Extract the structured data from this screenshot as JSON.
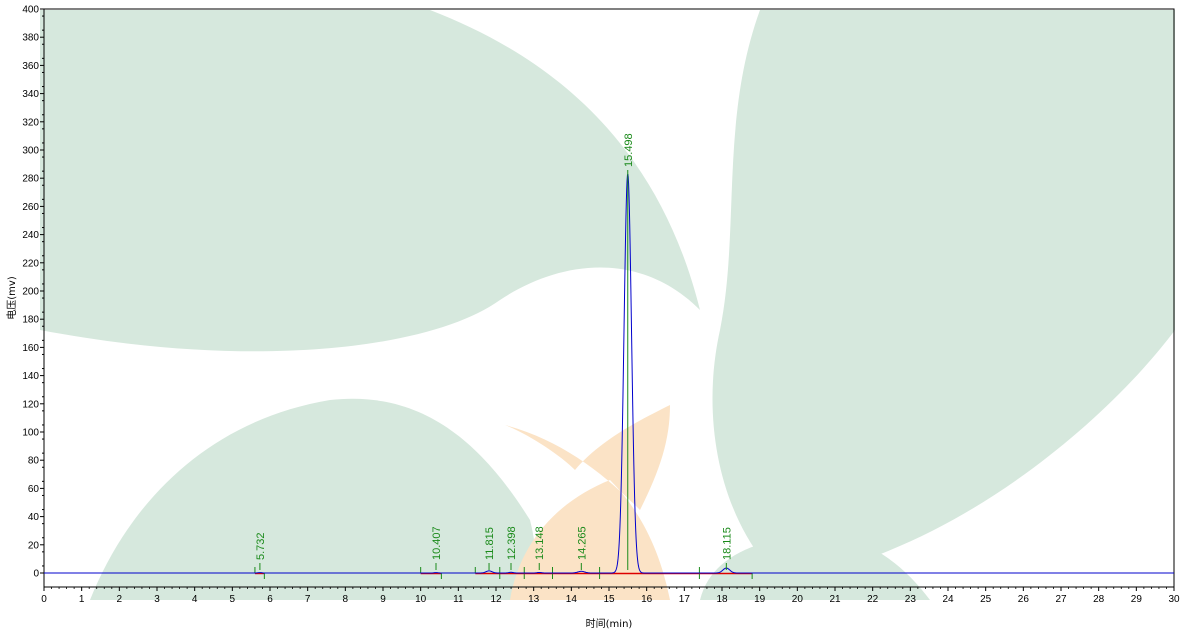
{
  "chart_data": {
    "type": "line",
    "title": "",
    "xlabel": "时间(min)",
    "ylabel": "电压(mv)",
    "xlim": [
      0,
      30
    ],
    "ylim": [
      -10,
      400
    ],
    "x_ticks": [
      0,
      1,
      2,
      3,
      4,
      5,
      6,
      7,
      8,
      9,
      10,
      11,
      12,
      13,
      14,
      15,
      16,
      17,
      18,
      19,
      20,
      21,
      22,
      23,
      24,
      25,
      26,
      27,
      28,
      29,
      30
    ],
    "y_ticks": [
      0,
      20,
      40,
      60,
      80,
      100,
      120,
      140,
      160,
      180,
      200,
      220,
      240,
      260,
      280,
      300,
      320,
      340,
      360,
      380,
      400
    ],
    "grid": false,
    "series": [
      {
        "color": "#0000cc",
        "peaks": [
          {
            "rt": 5.732,
            "height": 0.3,
            "width": 0.05
          },
          {
            "rt": 10.407,
            "height": 0.3,
            "width": 0.05
          },
          {
            "rt": 11.815,
            "height": 1.5,
            "width": 0.08
          },
          {
            "rt": 12.398,
            "height": 0.5,
            "width": 0.06
          },
          {
            "rt": 13.148,
            "height": 0.4,
            "width": 0.06
          },
          {
            "rt": 14.265,
            "height": 1.2,
            "width": 0.09
          },
          {
            "rt": 15.498,
            "height": 283,
            "width": 0.1
          },
          {
            "rt": 18.115,
            "height": 3.5,
            "width": 0.09
          }
        ]
      }
    ],
    "peak_labels": [
      "5.732",
      "10.407",
      "11.815",
      "12.398",
      "13.148",
      "14.265",
      "15.498",
      "18.115"
    ],
    "baseline_segments": [
      [
        5.6,
        5.85
      ],
      [
        10.0,
        10.55
      ],
      [
        11.45,
        12.1
      ],
      [
        12.1,
        12.75
      ],
      [
        12.75,
        13.5
      ],
      [
        13.5,
        14.75
      ],
      [
        14.75,
        17.4
      ],
      [
        17.4,
        18.8
      ]
    ],
    "colors": {
      "trace": "#0000cc",
      "baseline": "#dd0000",
      "marker": "#1a8a1a",
      "leaf": "#d6e8dd",
      "leaf_accent": "#fbe3c6"
    }
  }
}
